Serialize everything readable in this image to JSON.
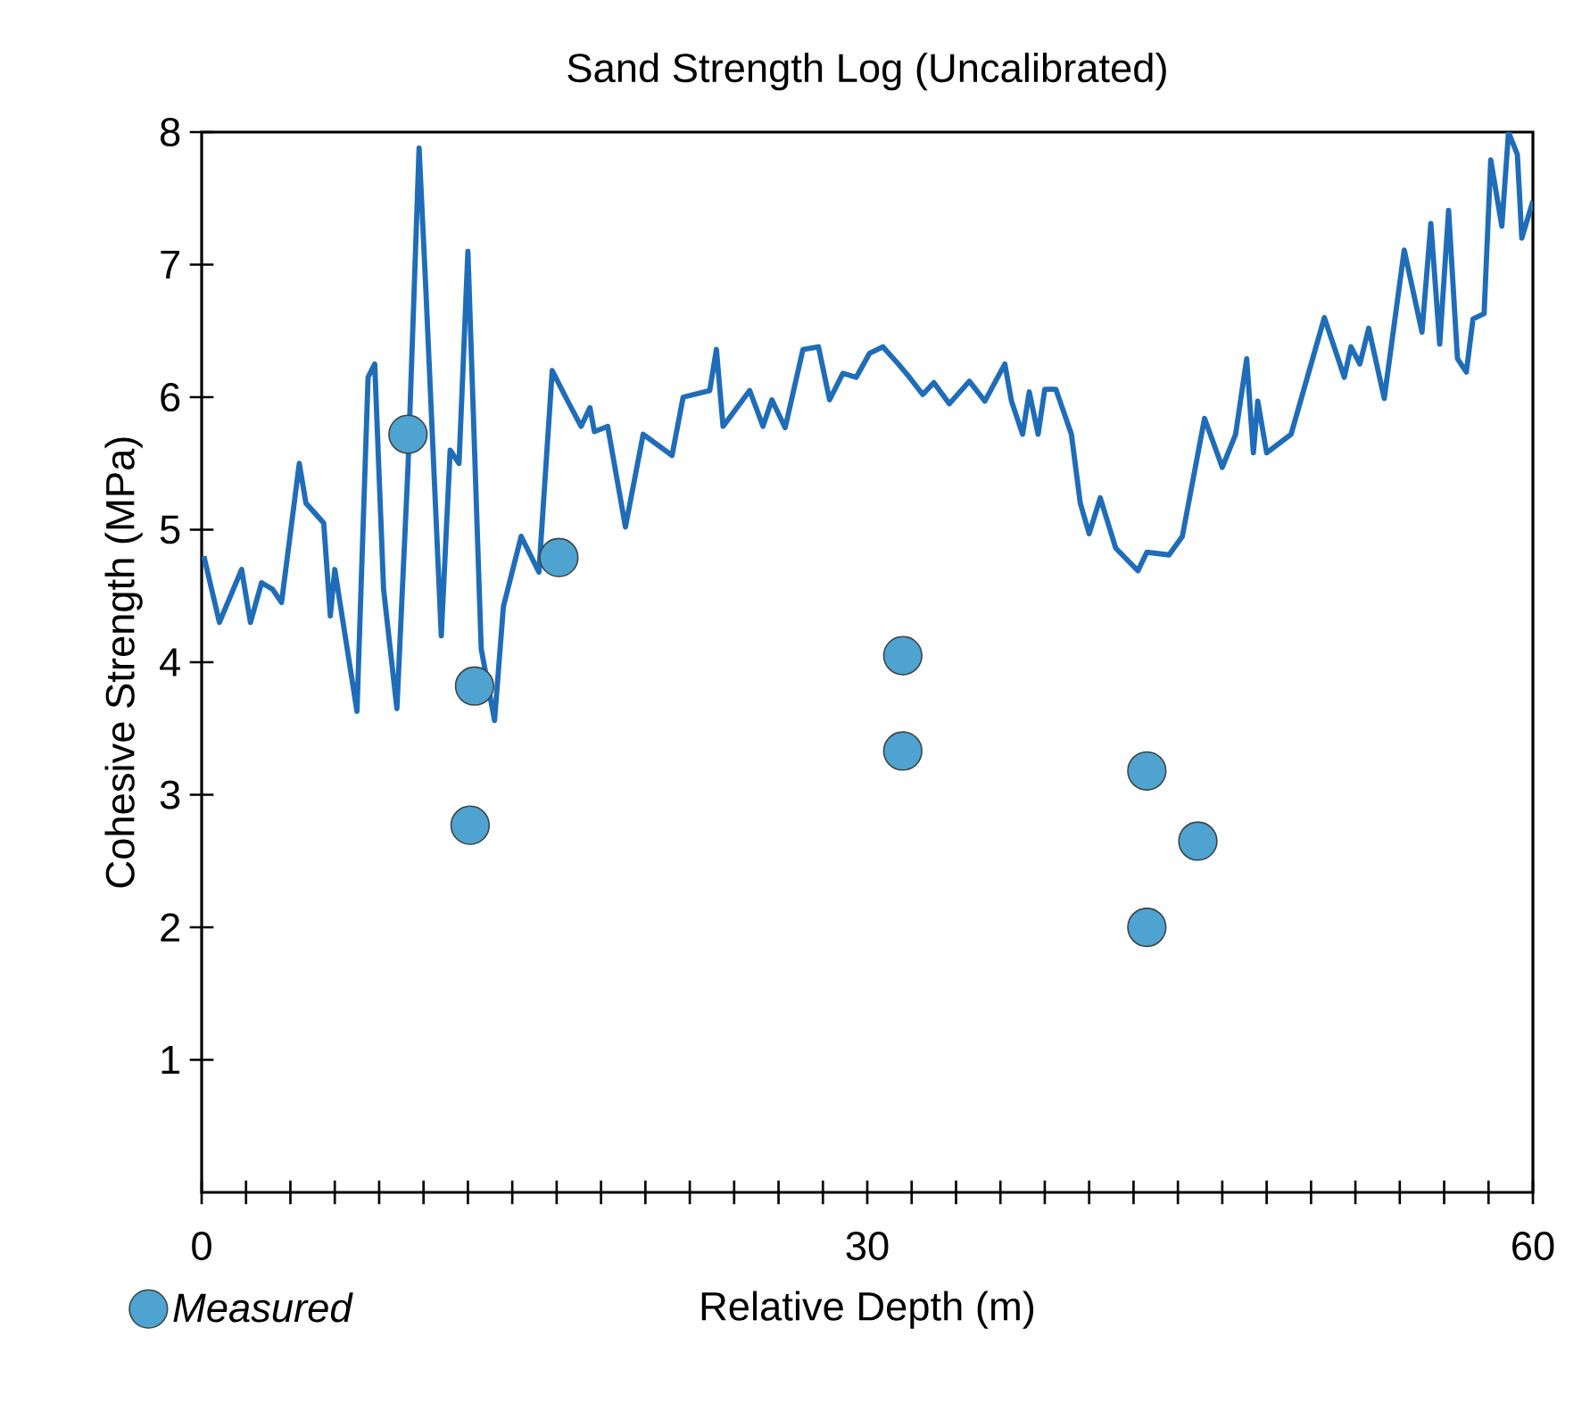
{
  "chart_data": {
    "type": "line",
    "title": "Sand Strength Log (Uncalibrated)",
    "xlabel": "Relative Depth (m)",
    "ylabel": "Cohesive Strength (MPa)",
    "xlim": [
      0,
      60
    ],
    "ylim": [
      0,
      8
    ],
    "xticks": [
      0,
      {
        "value": 2,
        "label": null
      },
      {
        "value": 4,
        "label": null
      },
      {
        "value": 6,
        "label": null
      },
      {
        "value": 8,
        "label": null
      },
      {
        "value": 10,
        "label": null
      },
      {
        "value": 12,
        "label": null
      },
      {
        "value": 14,
        "label": null
      },
      {
        "value": 16,
        "label": null
      },
      {
        "value": 18,
        "label": null
      },
      {
        "value": 20,
        "label": null
      },
      {
        "value": 22,
        "label": null
      },
      {
        "value": 24,
        "label": null
      },
      {
        "value": 26,
        "label": null
      },
      {
        "value": 28,
        "label": null
      },
      30,
      {
        "value": 32,
        "label": null
      },
      {
        "value": 34,
        "label": null
      },
      {
        "value": 36,
        "label": null
      },
      {
        "value": 38,
        "label": null
      },
      {
        "value": 40,
        "label": null
      },
      {
        "value": 42,
        "label": null
      },
      {
        "value": 44,
        "label": null
      },
      {
        "value": 46,
        "label": null
      },
      {
        "value": 48,
        "label": null
      },
      {
        "value": 50,
        "label": null
      },
      {
        "value": 52,
        "label": null
      },
      {
        "value": 54,
        "label": null
      },
      {
        "value": 56,
        "label": null
      },
      {
        "value": 58,
        "label": null
      },
      60
    ],
    "yticks": [
      1,
      2,
      3,
      4,
      5,
      6,
      7,
      8
    ],
    "legend": "bottom left",
    "series": [
      {
        "color": "#1f6db8",
        "marker": "none",
        "line_style": "solid",
        "x": [
          0.1,
          0.8,
          1.8,
          2.2,
          2.7,
          3.2,
          3.6,
          4.4,
          4.7,
          5.5,
          5.8,
          6.0,
          7.0,
          7.5,
          7.8,
          8.2,
          8.8,
          9.3,
          9.8,
          10.1,
          10.8,
          11.2,
          11.6,
          12.0,
          12.6,
          13.2,
          13.6,
          14.4,
          15.2,
          15.8,
          16.5,
          17.1,
          17.5,
          17.7,
          18.3,
          19.1,
          19.9,
          21.2,
          21.7,
          22.9,
          23.2,
          23.5,
          24.7,
          25.3,
          25.7,
          26.3,
          27.1,
          27.8,
          28.3,
          28.9,
          29.5,
          30.1,
          30.7,
          31.4,
          31.9,
          32.5,
          33.0,
          33.7,
          34.6,
          35.3,
          36.2,
          36.5,
          37.0,
          37.3,
          37.7,
          38.0,
          38.5,
          39.2,
          39.6,
          40.0,
          40.5,
          41.2,
          42.2,
          42.6,
          43.6,
          44.2,
          45.2,
          46.0,
          46.6,
          47.1,
          47.4,
          47.6,
          48.0,
          49.1,
          50.6,
          51.5,
          51.8,
          52.2,
          52.6,
          53.3,
          54.2,
          55.0,
          55.4,
          55.8,
          56.2,
          56.6,
          57.0,
          57.3,
          57.8,
          58.1,
          58.6,
          58.9,
          59.3,
          59.5,
          60.0
        ],
        "values": [
          4.8,
          4.3,
          4.7,
          4.3,
          4.6,
          4.55,
          4.45,
          5.5,
          5.2,
          5.05,
          4.35,
          4.7,
          3.63,
          6.15,
          6.25,
          4.55,
          3.65,
          5.47,
          7.88,
          6.83,
          4.2,
          5.6,
          5.5,
          7.1,
          4.1,
          3.56,
          4.42,
          4.95,
          4.68,
          6.2,
          5.97,
          5.78,
          5.92,
          5.74,
          5.78,
          5.02,
          5.72,
          5.56,
          6.0,
          6.05,
          6.36,
          5.78,
          6.05,
          5.78,
          5.98,
          5.77,
          6.36,
          6.38,
          5.98,
          6.18,
          6.15,
          6.33,
          6.38,
          6.25,
          6.15,
          6.02,
          6.11,
          5.95,
          6.12,
          5.97,
          6.25,
          5.97,
          5.72,
          6.04,
          5.72,
          6.06,
          6.06,
          5.72,
          5.2,
          4.97,
          5.24,
          4.86,
          4.69,
          4.83,
          4.81,
          4.95,
          5.84,
          5.47,
          5.72,
          6.29,
          5.58,
          5.97,
          5.58,
          5.72,
          6.6,
          6.15,
          6.38,
          6.25,
          6.52,
          5.99,
          7.11,
          6.49,
          7.31,
          6.4,
          7.41,
          6.29,
          6.19,
          6.59,
          6.63,
          7.79,
          7.29,
          8.0,
          7.83,
          7.2,
          7.48
        ]
      },
      {
        "type": "scatter",
        "name": "Measured",
        "color": "#4fa3d1",
        "marker": "circle",
        "x": [
          9.3,
          12.3,
          12.1,
          16.1,
          31.6,
          31.6,
          42.6,
          44.9,
          42.6
        ],
        "values": [
          5.72,
          3.82,
          2.77,
          4.79,
          4.05,
          3.33,
          3.18,
          2.65,
          2.0
        ]
      }
    ]
  }
}
